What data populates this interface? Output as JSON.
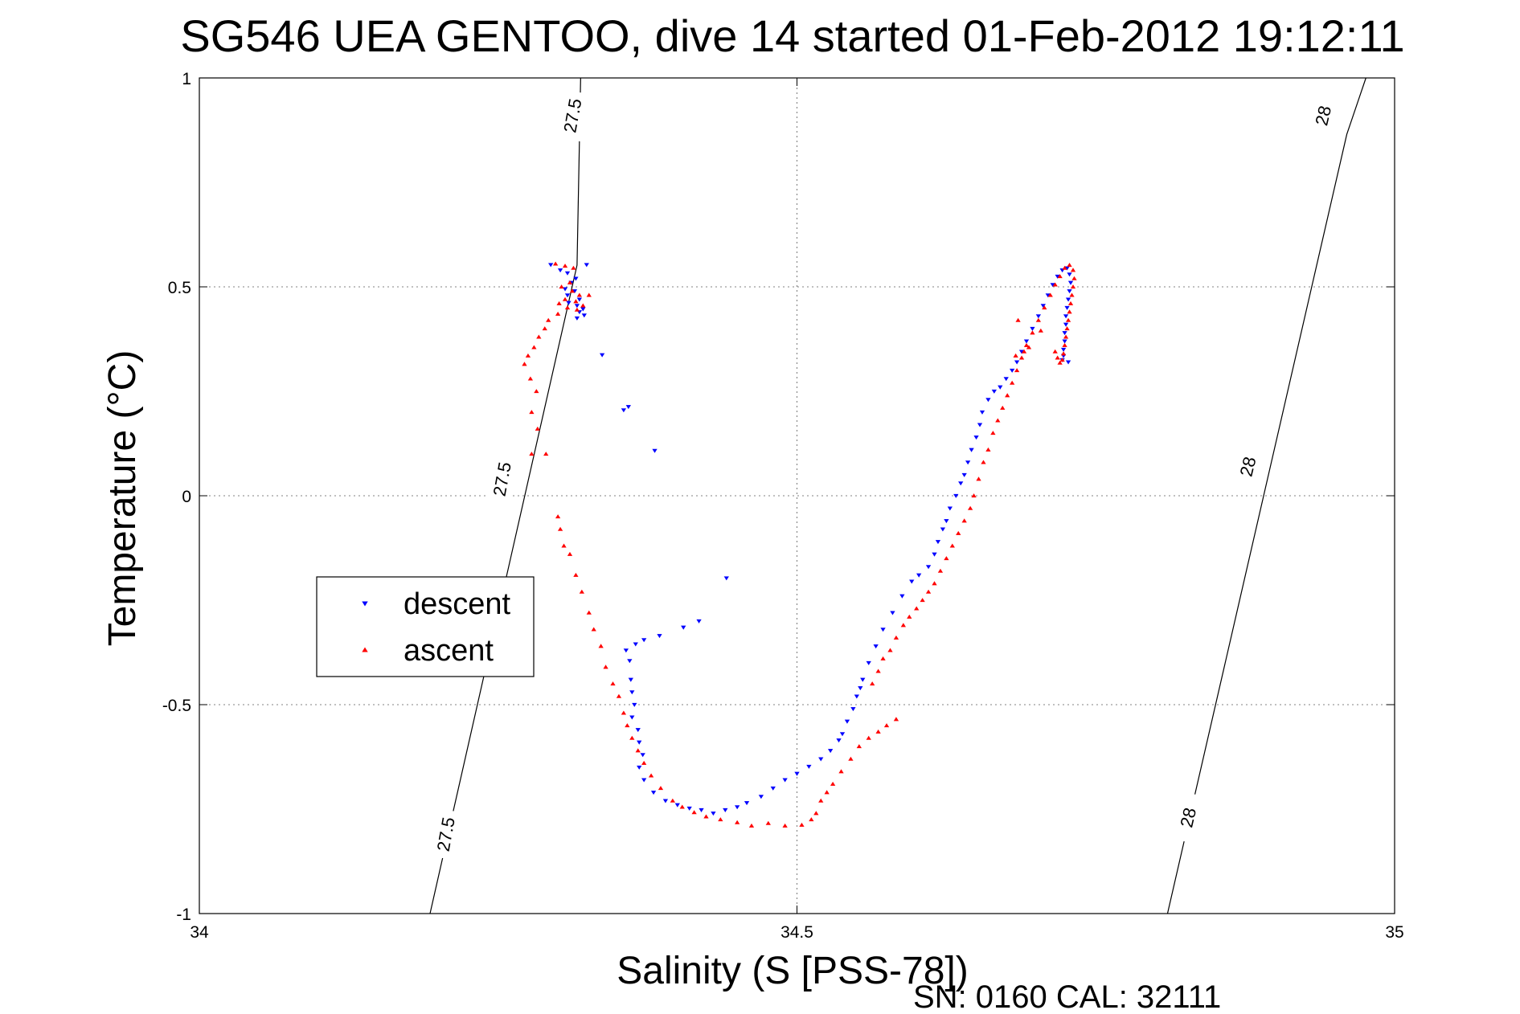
{
  "chart_data": {
    "type": "scatter",
    "title": "SG546 UEA GENTOO, dive 14 started 01-Feb-2012 19:12:11",
    "xlabel": "Salinity (S [PSS-78])",
    "ylabel": "Temperature (°C)",
    "xlim": [
      34,
      35
    ],
    "ylim": [
      -1,
      1
    ],
    "x_ticks": [
      "34",
      "34.5",
      "35"
    ],
    "y_ticks": [
      "1",
      "0.5",
      "0",
      "-0.5",
      "-1"
    ],
    "grid": true,
    "legend_position": "middle-left",
    "footer": "SN: 0160  CAL: 32111",
    "density_contours": [
      {
        "level": "27.5",
        "line": [
          [
            34.193,
            -1.0
          ],
          [
            34.316,
            0.552
          ],
          [
            34.319,
            1.0
          ]
        ],
        "label_positions": [
          [
            34.206,
            -0.81
          ],
          [
            34.253,
            0.04
          ],
          [
            34.312,
            0.91
          ]
        ]
      },
      {
        "level": "28",
        "line": [
          [
            34.81,
            -1.0
          ],
          [
            34.96,
            0.865
          ],
          [
            34.976,
            1.0
          ]
        ],
        "label_positions": [
          [
            34.827,
            -0.77
          ],
          [
            34.877,
            0.07
          ],
          [
            34.94,
            0.91
          ]
        ]
      }
    ],
    "series": [
      {
        "name": "descent",
        "color": "#0000ff",
        "marker": "triangle-down",
        "points": [
          [
            34.294,
            0.553
          ],
          [
            34.302,
            0.54
          ],
          [
            34.308,
            0.533
          ],
          [
            34.315,
            0.52
          ],
          [
            34.311,
            0.51
          ],
          [
            34.306,
            0.495
          ],
          [
            34.314,
            0.49
          ],
          [
            34.308,
            0.48
          ],
          [
            34.318,
            0.47
          ],
          [
            34.309,
            0.462
          ],
          [
            34.316,
            0.455
          ],
          [
            34.321,
            0.447
          ],
          [
            34.318,
            0.44
          ],
          [
            34.322,
            0.432
          ],
          [
            34.316,
            0.425
          ],
          [
            34.324,
            0.553
          ],
          [
            34.337,
            0.337
          ],
          [
            34.355,
            0.205
          ],
          [
            34.359,
            0.213
          ],
          [
            34.381,
            0.108
          ],
          [
            34.441,
            -0.197
          ],
          [
            34.418,
            -0.3
          ],
          [
            34.405,
            -0.315
          ],
          [
            34.385,
            -0.335
          ],
          [
            34.372,
            -0.345
          ],
          [
            34.365,
            -0.355
          ],
          [
            34.357,
            -0.37
          ],
          [
            34.36,
            -0.395
          ],
          [
            34.361,
            -0.44
          ],
          [
            34.362,
            -0.47
          ],
          [
            34.364,
            -0.5
          ],
          [
            34.362,
            -0.53
          ],
          [
            34.367,
            -0.56
          ],
          [
            34.368,
            -0.59
          ],
          [
            34.371,
            -0.62
          ],
          [
            34.368,
            -0.65
          ],
          [
            34.372,
            -0.68
          ],
          [
            34.38,
            -0.71
          ],
          [
            34.39,
            -0.73
          ],
          [
            34.4,
            -0.74
          ],
          [
            34.41,
            -0.748
          ],
          [
            34.42,
            -0.752
          ],
          [
            34.43,
            -0.76
          ],
          [
            34.44,
            -0.752
          ],
          [
            34.45,
            -0.745
          ],
          [
            34.458,
            -0.735
          ],
          [
            34.47,
            -0.72
          ],
          [
            34.48,
            -0.7
          ],
          [
            34.49,
            -0.68
          ],
          [
            34.5,
            -0.665
          ],
          [
            34.51,
            -0.648
          ],
          [
            34.52,
            -0.63
          ],
          [
            34.528,
            -0.61
          ],
          [
            34.535,
            -0.585
          ],
          [
            34.538,
            -0.57
          ],
          [
            34.542,
            -0.54
          ],
          [
            34.547,
            -0.51
          ],
          [
            34.55,
            -0.48
          ],
          [
            34.553,
            -0.46
          ],
          [
            34.555,
            -0.44
          ],
          [
            34.56,
            -0.4
          ],
          [
            34.566,
            -0.36
          ],
          [
            34.572,
            -0.32
          ],
          [
            34.58,
            -0.28
          ],
          [
            34.588,
            -0.24
          ],
          [
            34.596,
            -0.205
          ],
          [
            34.602,
            -0.19
          ],
          [
            34.61,
            -0.17
          ],
          [
            34.615,
            -0.14
          ],
          [
            34.618,
            -0.11
          ],
          [
            34.622,
            -0.08
          ],
          [
            34.625,
            -0.06
          ],
          [
            34.628,
            -0.03
          ],
          [
            34.633,
            0.0
          ],
          [
            34.637,
            0.03
          ],
          [
            34.64,
            0.05
          ],
          [
            34.643,
            0.08
          ],
          [
            34.646,
            0.11
          ],
          [
            34.65,
            0.14
          ],
          [
            34.653,
            0.17
          ],
          [
            34.655,
            0.2
          ],
          [
            34.66,
            0.23
          ],
          [
            34.665,
            0.25
          ],
          [
            34.67,
            0.26
          ],
          [
            34.675,
            0.28
          ],
          [
            34.68,
            0.3
          ],
          [
            34.684,
            0.32
          ],
          [
            34.688,
            0.345
          ],
          [
            34.692,
            0.37
          ],
          [
            34.697,
            0.4
          ],
          [
            34.702,
            0.43
          ],
          [
            34.706,
            0.455
          ],
          [
            34.71,
            0.48
          ],
          [
            34.714,
            0.505
          ],
          [
            34.718,
            0.525
          ],
          [
            34.722,
            0.54
          ],
          [
            34.726,
            0.545
          ],
          [
            34.728,
            0.53
          ],
          [
            34.729,
            0.51
          ],
          [
            34.728,
            0.49
          ],
          [
            34.727,
            0.47
          ],
          [
            34.726,
            0.45
          ],
          [
            34.725,
            0.43
          ],
          [
            34.725,
            0.41
          ],
          [
            34.724,
            0.39
          ],
          [
            34.724,
            0.37
          ],
          [
            34.723,
            0.35
          ],
          [
            34.723,
            0.335
          ],
          [
            34.722,
            0.325
          ],
          [
            34.727,
            0.32
          ]
        ]
      },
      {
        "name": "ascent",
        "color": "#ff0000",
        "marker": "triangle-up",
        "points": [
          [
            34.298,
            0.555
          ],
          [
            34.306,
            0.55
          ],
          [
            34.313,
            0.545
          ],
          [
            34.31,
            0.51
          ],
          [
            34.303,
            0.5
          ],
          [
            34.312,
            0.49
          ],
          [
            34.318,
            0.48
          ],
          [
            34.306,
            0.47
          ],
          [
            34.315,
            0.465
          ],
          [
            34.301,
            0.46
          ],
          [
            34.321,
            0.455
          ],
          [
            34.308,
            0.45
          ],
          [
            34.316,
            0.445
          ],
          [
            34.326,
            0.48
          ],
          [
            34.3,
            0.435
          ],
          [
            34.292,
            0.42
          ],
          [
            34.289,
            0.4
          ],
          [
            34.284,
            0.38
          ],
          [
            34.28,
            0.355
          ],
          [
            34.275,
            0.335
          ],
          [
            34.272,
            0.315
          ],
          [
            34.277,
            0.28
          ],
          [
            34.282,
            0.25
          ],
          [
            34.278,
            0.2
          ],
          [
            34.283,
            0.16
          ],
          [
            34.278,
            0.1
          ],
          [
            34.29,
            0.1
          ],
          [
            34.3,
            -0.05
          ],
          [
            34.302,
            -0.08
          ],
          [
            34.305,
            -0.12
          ],
          [
            34.31,
            -0.14
          ],
          [
            34.315,
            -0.19
          ],
          [
            34.32,
            -0.23
          ],
          [
            34.326,
            -0.28
          ],
          [
            34.33,
            -0.32
          ],
          [
            34.336,
            -0.36
          ],
          [
            34.34,
            -0.41
          ],
          [
            34.346,
            -0.45
          ],
          [
            34.351,
            -0.48
          ],
          [
            34.355,
            -0.52
          ],
          [
            34.358,
            -0.55
          ],
          [
            34.362,
            -0.58
          ],
          [
            34.367,
            -0.61
          ],
          [
            34.372,
            -0.64
          ],
          [
            34.378,
            -0.67
          ],
          [
            34.386,
            -0.7
          ],
          [
            34.396,
            -0.73
          ],
          [
            34.404,
            -0.745
          ],
          [
            34.414,
            -0.758
          ],
          [
            34.424,
            -0.768
          ],
          [
            34.436,
            -0.775
          ],
          [
            34.45,
            -0.782
          ],
          [
            34.462,
            -0.79
          ],
          [
            34.476,
            -0.784
          ],
          [
            34.49,
            -0.79
          ],
          [
            34.504,
            -0.788
          ],
          [
            34.512,
            -0.775
          ],
          [
            34.516,
            -0.76
          ],
          [
            34.52,
            -0.73
          ],
          [
            34.525,
            -0.71
          ],
          [
            34.53,
            -0.69
          ],
          [
            34.537,
            -0.66
          ],
          [
            34.545,
            -0.63
          ],
          [
            34.552,
            -0.6
          ],
          [
            34.56,
            -0.58
          ],
          [
            34.568,
            -0.565
          ],
          [
            34.575,
            -0.55
          ],
          [
            34.583,
            -0.535
          ],
          [
            34.563,
            -0.45
          ],
          [
            34.568,
            -0.42
          ],
          [
            34.572,
            -0.39
          ],
          [
            34.578,
            -0.37
          ],
          [
            34.583,
            -0.34
          ],
          [
            34.589,
            -0.31
          ],
          [
            34.594,
            -0.29
          ],
          [
            34.6,
            -0.27
          ],
          [
            34.605,
            -0.25
          ],
          [
            34.61,
            -0.23
          ],
          [
            34.615,
            -0.21
          ],
          [
            34.62,
            -0.18
          ],
          [
            34.625,
            -0.15
          ],
          [
            34.63,
            -0.12
          ],
          [
            34.635,
            -0.09
          ],
          [
            34.64,
            -0.06
          ],
          [
            34.645,
            -0.03
          ],
          [
            34.648,
            0.0
          ],
          [
            34.652,
            0.04
          ],
          [
            34.656,
            0.08
          ],
          [
            34.66,
            0.11
          ],
          [
            34.664,
            0.15
          ],
          [
            34.668,
            0.18
          ],
          [
            34.672,
            0.21
          ],
          [
            34.676,
            0.24
          ],
          [
            34.68,
            0.27
          ],
          [
            34.684,
            0.3
          ],
          [
            34.688,
            0.33
          ],
          [
            34.692,
            0.36
          ],
          [
            34.697,
            0.39
          ],
          [
            34.702,
            0.42
          ],
          [
            34.707,
            0.45
          ],
          [
            34.712,
            0.48
          ],
          [
            34.716,
            0.505
          ],
          [
            34.72,
            0.525
          ],
          [
            34.724,
            0.545
          ],
          [
            34.728,
            0.552
          ],
          [
            34.731,
            0.54
          ],
          [
            34.732,
            0.52
          ],
          [
            34.731,
            0.5
          ],
          [
            34.73,
            0.48
          ],
          [
            34.729,
            0.46
          ],
          [
            34.728,
            0.44
          ],
          [
            34.727,
            0.42
          ],
          [
            34.726,
            0.4
          ],
          [
            34.725,
            0.38
          ],
          [
            34.724,
            0.36
          ],
          [
            34.723,
            0.34
          ],
          [
            34.722,
            0.325
          ],
          [
            34.72,
            0.318
          ],
          [
            34.718,
            0.33
          ],
          [
            34.716,
            0.345
          ],
          [
            34.69,
            0.345
          ],
          [
            34.694,
            0.355
          ],
          [
            34.685,
            0.42
          ],
          [
            34.704,
            0.395
          ],
          [
            34.683,
            0.335
          ]
        ]
      }
    ]
  }
}
